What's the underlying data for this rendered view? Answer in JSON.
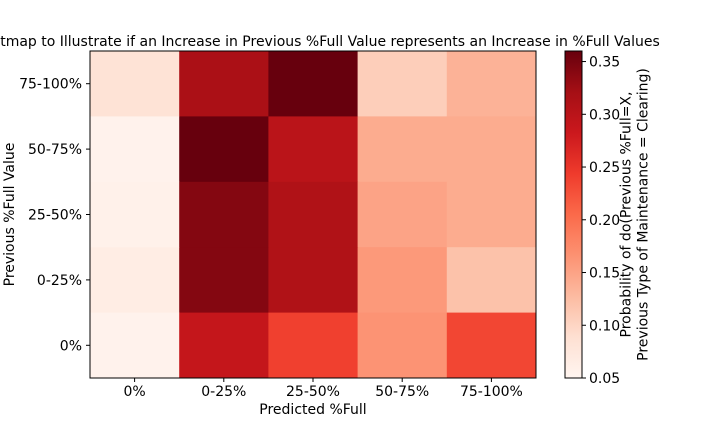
{
  "chart_data": {
    "type": "heatmap",
    "title": "tmap to Illustrate if an Increase in Previous %Full Value represents an Increase in %Full Values",
    "xlabel": "Predicted %Full",
    "ylabel": "Previous %Full Value",
    "x_categories": [
      "0%",
      "0-25%",
      "25-50%",
      "50-75%",
      "75-100%"
    ],
    "y_categories": [
      "75-100%",
      "50-75%",
      "25-50%",
      "0-25%",
      "0%"
    ],
    "values": [
      [
        0.083,
        0.315,
        0.36,
        0.108,
        0.136
      ],
      [
        0.055,
        0.36,
        0.3,
        0.142,
        0.142
      ],
      [
        0.058,
        0.342,
        0.31,
        0.15,
        0.142
      ],
      [
        0.065,
        0.342,
        0.31,
        0.16,
        0.12
      ],
      [
        0.055,
        0.29,
        0.24,
        0.165,
        0.235
      ]
    ],
    "colorbar": {
      "label": "Probability of do(Previous %Full=X,\nPrevious Type of Maintenance = Clearing)",
      "vmin": 0.05,
      "vmax": 0.36,
      "ticks": [
        "0.05",
        "0.10",
        "0.15",
        "0.20",
        "0.25",
        "0.30",
        "0.35"
      ],
      "colormap": "Reds"
    }
  }
}
